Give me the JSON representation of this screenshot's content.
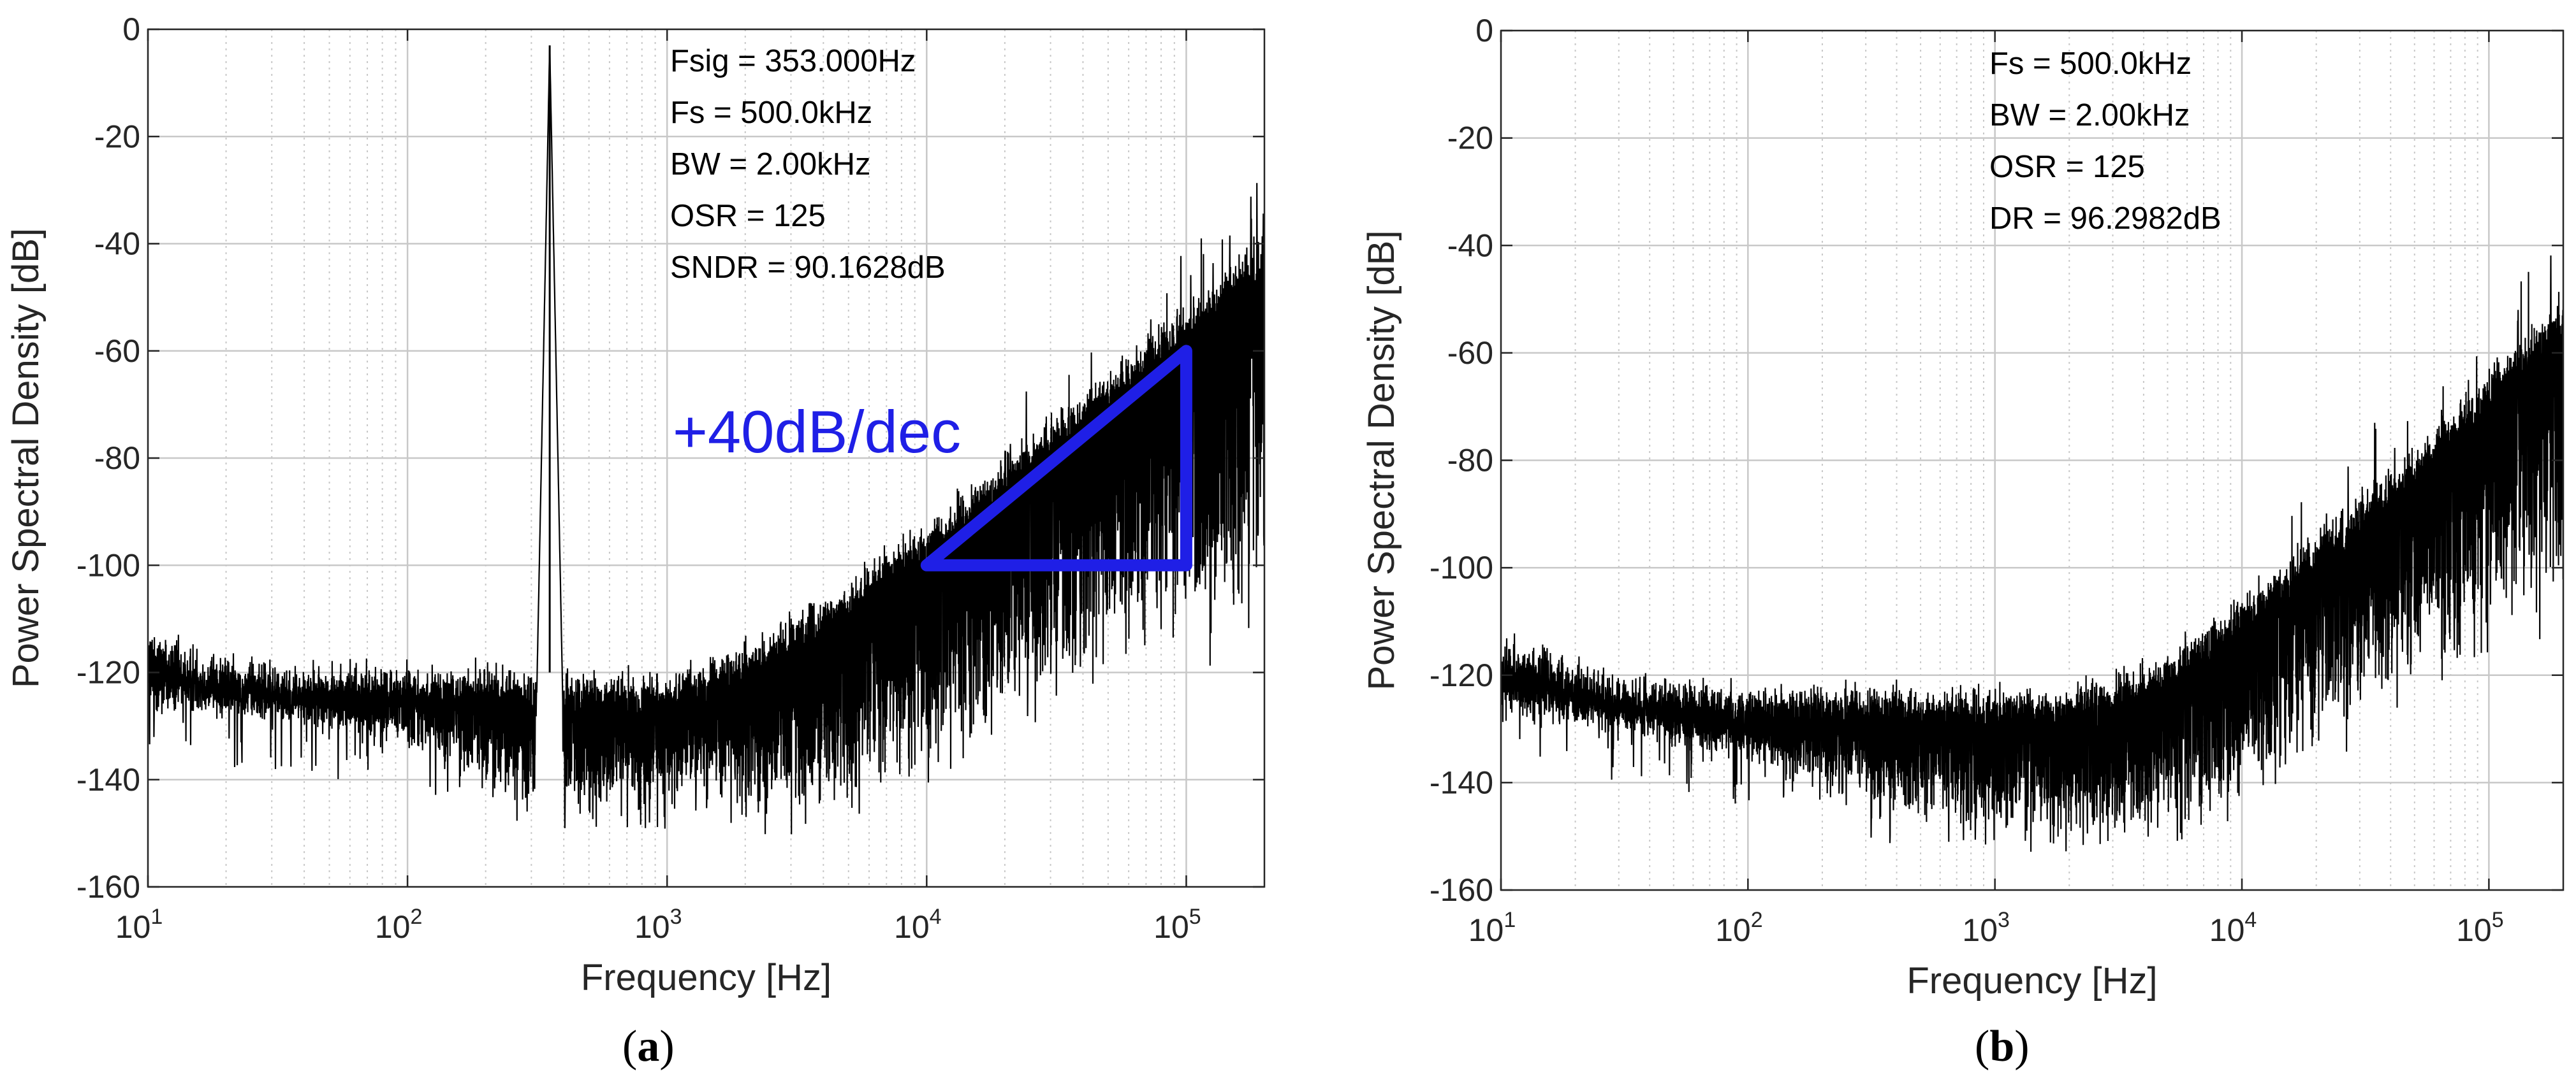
{
  "colors": {
    "trace": "#000000",
    "annotation": "#1f1fe6",
    "grid": "#c8c8c8",
    "axes": "#262626"
  },
  "chart_data": [
    {
      "panel": "a",
      "panel_label_text": "a",
      "type": "line",
      "title": "",
      "xlabel": "Frequency [Hz]",
      "ylabel": "Power Spectral Density [dB]",
      "xscale": "log",
      "xlim": [
        10,
        200000
      ],
      "ylim": [
        -160,
        0
      ],
      "grid": true,
      "x_ticks": [
        {
          "base": "10",
          "exp": "1"
        },
        {
          "base": "10",
          "exp": "2"
        },
        {
          "base": "10",
          "exp": "3"
        },
        {
          "base": "10",
          "exp": "4"
        },
        {
          "base": "10",
          "exp": "5"
        }
      ],
      "y_ticks": [
        "0",
        "-20",
        "-40",
        "-60",
        "-80",
        "-100",
        "-120",
        "-140",
        "-160"
      ],
      "info_lines": [
        "Fsig = 353.000Hz",
        "Fs = 500.0kHz",
        "BW = 2.00kHz",
        "OSR = 125",
        "SNDR = 90.1628dB"
      ],
      "annotation": {
        "text": "+40dB/dec",
        "triangle_points": [
          [
            10000,
            -100
          ],
          [
            100000,
            -60
          ],
          [
            100000,
            -100
          ]
        ]
      },
      "series": [
        {
          "name": "floor",
          "x": [
            10,
            14,
            20,
            30,
            50,
            80,
            120,
            200,
            300,
            500,
            800,
            1000,
            1500,
            2000,
            3000,
            5000,
            10000,
            20000,
            50000,
            100000,
            200000
          ],
          "values": [
            -116,
            -119,
            -121,
            -122,
            -123,
            -123,
            -123,
            -123,
            -124,
            -125,
            -125,
            -124,
            -122,
            -119,
            -114,
            -107,
            -96,
            -84,
            -68,
            -56,
            -43
          ]
        },
        {
          "name": "lower_envelope",
          "x": [
            10,
            100,
            400,
            1000,
            3000,
            5000,
            10000,
            20000,
            50000,
            100000,
            200000
          ],
          "values": [
            -124,
            -130,
            -140,
            -138,
            -137,
            -132,
            -125,
            -115,
            -104,
            -96,
            -87
          ]
        },
        {
          "name": "signal_tone",
          "x": [
            353
          ],
          "values": [
            -3
          ]
        }
      ]
    },
    {
      "panel": "b",
      "panel_label_text": "b",
      "type": "line",
      "title": "",
      "xlabel": "Frequency [Hz]",
      "ylabel": "Power Spectral Density [dB]",
      "xscale": "log",
      "xlim": [
        10,
        200000
      ],
      "ylim": [
        -160,
        0
      ],
      "grid": true,
      "x_ticks": [
        {
          "base": "10",
          "exp": "1"
        },
        {
          "base": "10",
          "exp": "2"
        },
        {
          "base": "10",
          "exp": "3"
        },
        {
          "base": "10",
          "exp": "4"
        },
        {
          "base": "10",
          "exp": "5"
        }
      ],
      "y_ticks": [
        "0",
        "-20",
        "-40",
        "-60",
        "-80",
        "-100",
        "-120",
        "-140",
        "-160"
      ],
      "info_lines": [
        "Fs = 500.0kHz",
        "BW = 2.00kHz",
        "OSR = 125",
        "DR = 96.2982dB"
      ],
      "series": [
        {
          "name": "floor",
          "x": [
            10,
            14,
            20,
            30,
            50,
            80,
            120,
            200,
            300,
            500,
            800,
            1000,
            1500,
            2000,
            3000,
            5000,
            10000,
            20000,
            50000,
            100000,
            200000
          ],
          "values": [
            -118,
            -119,
            -122,
            -124,
            -125,
            -126,
            -126,
            -126,
            -126,
            -127,
            -127,
            -127,
            -127,
            -126,
            -125,
            -120,
            -110,
            -98,
            -82,
            -68,
            -54
          ]
        },
        {
          "name": "lower_envelope",
          "x": [
            10,
            100,
            400,
            1000,
            3000,
            5000,
            10000,
            20000,
            50000,
            100000,
            200000
          ],
          "values": [
            -124,
            -133,
            -140,
            -141,
            -142,
            -140,
            -132,
            -121,
            -108,
            -99,
            -88
          ]
        }
      ]
    }
  ]
}
